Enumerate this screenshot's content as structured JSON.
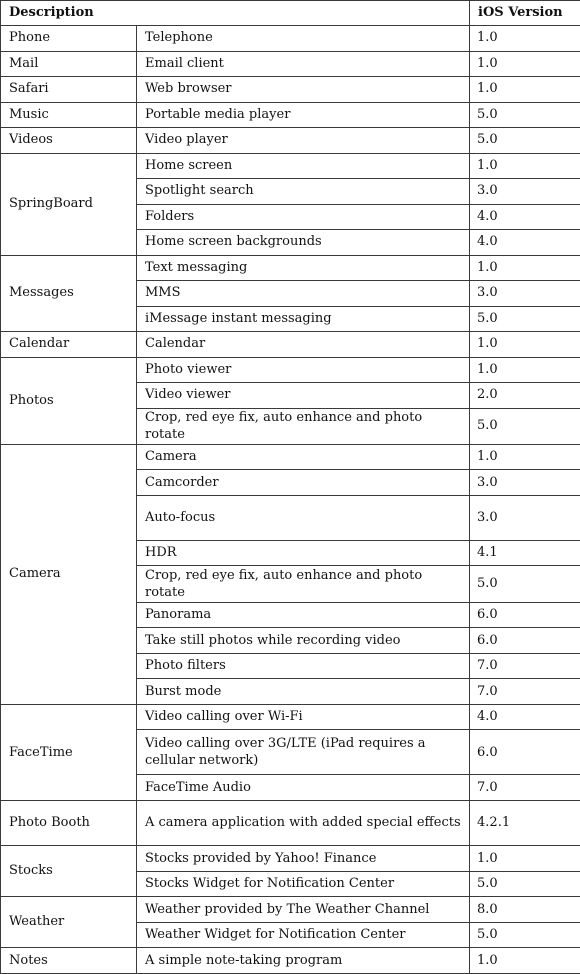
{
  "table": {
    "header": {
      "description": "Description",
      "version": "iOS Version"
    },
    "groups": [
      {
        "app": "Phone",
        "rows": [
          {
            "feature": "Telephone",
            "version": "1.0"
          }
        ]
      },
      {
        "app": "Mail",
        "rows": [
          {
            "feature": "Email client",
            "version": "1.0"
          }
        ]
      },
      {
        "app": "Safari",
        "rows": [
          {
            "feature": "Web browser",
            "version": "1.0"
          }
        ]
      },
      {
        "app": "Music",
        "rows": [
          {
            "feature": "Portable media player",
            "version": "5.0"
          }
        ]
      },
      {
        "app": "Videos",
        "rows": [
          {
            "feature": "Video player",
            "version": "5.0"
          }
        ]
      },
      {
        "app": "SpringBoard",
        "rows": [
          {
            "feature": "Home screen",
            "version": "1.0"
          },
          {
            "feature": "Spotlight search",
            "version": "3.0"
          },
          {
            "feature": "Folders",
            "version": "4.0"
          },
          {
            "feature": "Home screen backgrounds",
            "version": "4.0"
          }
        ]
      },
      {
        "app": "Messages",
        "rows": [
          {
            "feature": "Text messaging",
            "version": "1.0"
          },
          {
            "feature": "MMS",
            "version": "3.0"
          },
          {
            "feature": "iMessage instant messaging",
            "version": "5.0"
          }
        ]
      },
      {
        "app": "Calendar",
        "rows": [
          {
            "feature": "Calendar",
            "version": "1.0"
          }
        ]
      },
      {
        "app": "Photos",
        "rows": [
          {
            "feature": "Photo viewer",
            "version": "1.0"
          },
          {
            "feature": "Video viewer",
            "version": "2.0"
          },
          {
            "feature": "Crop, red eye fix, auto enhance and photo rotate",
            "version": "5.0"
          }
        ]
      },
      {
        "app": "Camera",
        "rows": [
          {
            "feature": "Camera",
            "version": "1.0"
          },
          {
            "feature": "Camcorder",
            "version": "3.0"
          },
          {
            "feature": "Auto-focus",
            "version": "3.0"
          },
          {
            "feature": "HDR",
            "version": "4.1"
          },
          {
            "feature": "Crop, red eye fix, auto enhance and photo rotate",
            "version": "5.0"
          },
          {
            "feature": "Panorama",
            "version": "6.0"
          },
          {
            "feature": "Take still photos while recording video",
            "version": "6.0"
          },
          {
            "feature": "Photo filters",
            "version": "7.0"
          },
          {
            "feature": "Burst mode",
            "version": "7.0"
          }
        ]
      },
      {
        "app": "FaceTime",
        "rows": [
          {
            "feature": "Video calling over Wi-Fi",
            "version": "4.0"
          },
          {
            "feature": "Video calling over 3G/LTE (iPad requires a cellular network)",
            "version": "6.0"
          },
          {
            "feature": "FaceTime Audio",
            "version": "7.0"
          }
        ]
      },
      {
        "app": "Photo Booth",
        "rows": [
          {
            "feature": "A camera application with added special effects",
            "version": "4.2.1"
          }
        ]
      },
      {
        "app": "Stocks",
        "rows": [
          {
            "feature": "Stocks provided by Yahoo! Finance",
            "version": "1.0"
          },
          {
            "feature": "Stocks Widget for Notification Center",
            "version": "5.0"
          }
        ]
      },
      {
        "app": "Weather",
        "rows": [
          {
            "feature": "Weather provided by The Weather Channel",
            "version": "8.0"
          },
          {
            "feature": "Weather Widget for Notification Center",
            "version": "5.0"
          }
        ]
      },
      {
        "app": "Notes",
        "rows": [
          {
            "feature": "A simple note-taking program",
            "version": "1.0"
          }
        ]
      }
    ]
  }
}
